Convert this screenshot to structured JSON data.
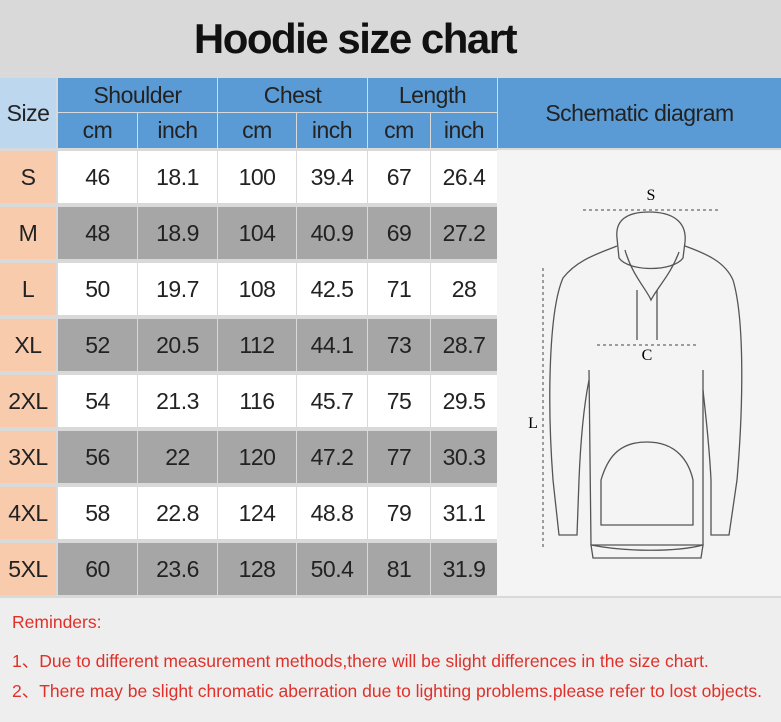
{
  "title": "Hoodie size chart",
  "table": {
    "size_header": "Size",
    "groups": [
      "Shoulder",
      "Chest",
      "Length"
    ],
    "units": [
      "cm",
      "inch",
      "cm",
      "inch",
      "cm",
      "inch"
    ],
    "schematic_header": "Schematic diagram",
    "rows": [
      [
        "S",
        46,
        18.1,
        100,
        39.4,
        67,
        26.4
      ],
      [
        "M",
        48,
        18.9,
        104,
        40.9,
        69,
        27.2
      ],
      [
        "L",
        50,
        19.7,
        108,
        42.5,
        71,
        28
      ],
      [
        "XL",
        52,
        20.5,
        112,
        44.1,
        73,
        28.7
      ],
      [
        "2XL",
        54,
        21.3,
        116,
        45.7,
        75,
        29.5
      ],
      [
        "3XL",
        56,
        22,
        120,
        47.2,
        77,
        30.3
      ],
      [
        "4XL",
        58,
        22.8,
        124,
        48.8,
        79,
        31.1
      ],
      [
        "5XL",
        60,
        23.6,
        128,
        50.4,
        81,
        31.9
      ]
    ]
  },
  "diagram": {
    "labels": [
      "S",
      "C",
      "L"
    ]
  },
  "reminders": {
    "heading": "Reminders:",
    "lines": [
      "1、Due to different measurement methods,there will be slight differences in the size chart.",
      "2、There may be slight chromatic aberration due to lighting problems.please refer to lost objects."
    ]
  }
}
